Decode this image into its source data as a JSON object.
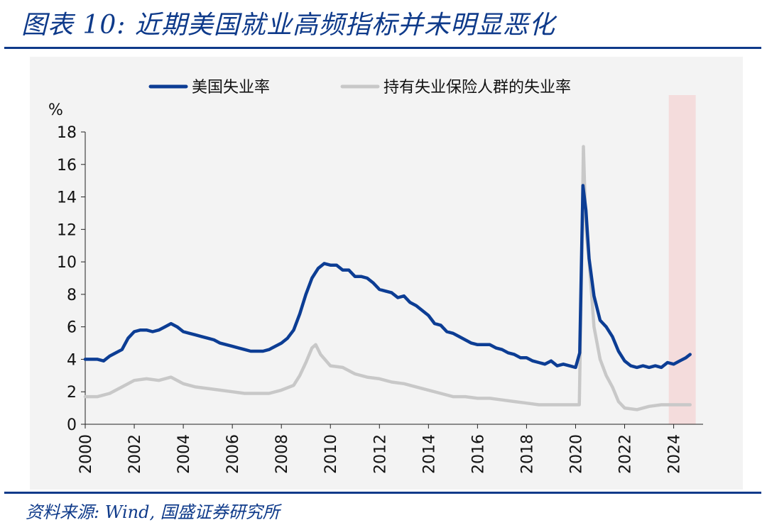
{
  "header": {
    "title": "图表 10:  近期美国就业高频指标并未明显恶化"
  },
  "footer": {
    "source": "资料来源: Wind, 国盛证券研究所"
  },
  "colors": {
    "brand": "#0e3a8a",
    "series_unemployment": "#0c3d94",
    "series_insured": "#c8c8c8",
    "highlight": "#f4dcdc",
    "panel": "#f3f3f3"
  },
  "chart_data": {
    "type": "line",
    "unit_label": "%",
    "xlim": [
      2000,
      2025.2
    ],
    "ylim": [
      0,
      18
    ],
    "yticks": [
      0,
      2,
      4,
      6,
      8,
      10,
      12,
      14,
      16,
      18
    ],
    "xticks": [
      "2000",
      "2002",
      "2004",
      "2006",
      "2008",
      "2010",
      "2012",
      "2014",
      "2016",
      "2018",
      "2020",
      "2022",
      "2024"
    ],
    "grid": false,
    "legend_position": "top",
    "highlight_range": [
      2023.8,
      2024.9
    ],
    "series": [
      {
        "name": "美国失业率",
        "color": "#0c3d94",
        "points": [
          [
            2000.0,
            4.0
          ],
          [
            2000.25,
            4.0
          ],
          [
            2000.5,
            4.0
          ],
          [
            2000.75,
            3.9
          ],
          [
            2001.0,
            4.2
          ],
          [
            2001.25,
            4.4
          ],
          [
            2001.5,
            4.6
          ],
          [
            2001.75,
            5.3
          ],
          [
            2002.0,
            5.7
          ],
          [
            2002.25,
            5.8
          ],
          [
            2002.5,
            5.8
          ],
          [
            2002.75,
            5.7
          ],
          [
            2003.0,
            5.8
          ],
          [
            2003.25,
            6.0
          ],
          [
            2003.5,
            6.2
          ],
          [
            2003.75,
            6.0
          ],
          [
            2004.0,
            5.7
          ],
          [
            2004.25,
            5.6
          ],
          [
            2004.5,
            5.5
          ],
          [
            2004.75,
            5.4
          ],
          [
            2005.0,
            5.3
          ],
          [
            2005.25,
            5.2
          ],
          [
            2005.5,
            5.0
          ],
          [
            2005.75,
            4.9
          ],
          [
            2006.0,
            4.8
          ],
          [
            2006.25,
            4.7
          ],
          [
            2006.5,
            4.6
          ],
          [
            2006.75,
            4.5
          ],
          [
            2007.0,
            4.5
          ],
          [
            2007.25,
            4.5
          ],
          [
            2007.5,
            4.6
          ],
          [
            2007.75,
            4.8
          ],
          [
            2008.0,
            5.0
          ],
          [
            2008.25,
            5.3
          ],
          [
            2008.5,
            5.8
          ],
          [
            2008.75,
            6.8
          ],
          [
            2009.0,
            8.0
          ],
          [
            2009.25,
            9.0
          ],
          [
            2009.5,
            9.6
          ],
          [
            2009.75,
            9.9
          ],
          [
            2010.0,
            9.8
          ],
          [
            2010.25,
            9.8
          ],
          [
            2010.5,
            9.5
          ],
          [
            2010.75,
            9.5
          ],
          [
            2011.0,
            9.1
          ],
          [
            2011.25,
            9.1
          ],
          [
            2011.5,
            9.0
          ],
          [
            2011.75,
            8.7
          ],
          [
            2012.0,
            8.3
          ],
          [
            2012.25,
            8.2
          ],
          [
            2012.5,
            8.1
          ],
          [
            2012.75,
            7.8
          ],
          [
            2013.0,
            7.9
          ],
          [
            2013.25,
            7.5
          ],
          [
            2013.5,
            7.3
          ],
          [
            2013.75,
            7.0
          ],
          [
            2014.0,
            6.7
          ],
          [
            2014.25,
            6.2
          ],
          [
            2014.5,
            6.1
          ],
          [
            2014.75,
            5.7
          ],
          [
            2015.0,
            5.6
          ],
          [
            2015.25,
            5.4
          ],
          [
            2015.5,
            5.2
          ],
          [
            2015.75,
            5.0
          ],
          [
            2016.0,
            4.9
          ],
          [
            2016.25,
            4.9
          ],
          [
            2016.5,
            4.9
          ],
          [
            2016.75,
            4.7
          ],
          [
            2017.0,
            4.6
          ],
          [
            2017.25,
            4.4
          ],
          [
            2017.5,
            4.3
          ],
          [
            2017.75,
            4.1
          ],
          [
            2018.0,
            4.1
          ],
          [
            2018.25,
            3.9
          ],
          [
            2018.5,
            3.8
          ],
          [
            2018.75,
            3.7
          ],
          [
            2019.0,
            3.9
          ],
          [
            2019.25,
            3.6
          ],
          [
            2019.5,
            3.7
          ],
          [
            2019.75,
            3.6
          ],
          [
            2020.0,
            3.5
          ],
          [
            2020.17,
            4.4
          ],
          [
            2020.3,
            14.7
          ],
          [
            2020.42,
            13.2
          ],
          [
            2020.55,
            10.2
          ],
          [
            2020.75,
            7.9
          ],
          [
            2021.0,
            6.4
          ],
          [
            2021.25,
            6.0
          ],
          [
            2021.5,
            5.4
          ],
          [
            2021.75,
            4.5
          ],
          [
            2022.0,
            3.9
          ],
          [
            2022.25,
            3.6
          ],
          [
            2022.5,
            3.5
          ],
          [
            2022.75,
            3.6
          ],
          [
            2023.0,
            3.5
          ],
          [
            2023.25,
            3.6
          ],
          [
            2023.5,
            3.5
          ],
          [
            2023.75,
            3.8
          ],
          [
            2024.0,
            3.7
          ],
          [
            2024.25,
            3.9
          ],
          [
            2024.5,
            4.1
          ],
          [
            2024.67,
            4.3
          ]
        ]
      },
      {
        "name": "持有失业保险人群的失业率",
        "color": "#c8c8c8",
        "points": [
          [
            2000.0,
            1.7
          ],
          [
            2000.5,
            1.7
          ],
          [
            2001.0,
            1.9
          ],
          [
            2001.5,
            2.3
          ],
          [
            2002.0,
            2.7
          ],
          [
            2002.5,
            2.8
          ],
          [
            2003.0,
            2.7
          ],
          [
            2003.5,
            2.9
          ],
          [
            2004.0,
            2.5
          ],
          [
            2004.5,
            2.3
          ],
          [
            2005.0,
            2.2
          ],
          [
            2005.5,
            2.1
          ],
          [
            2006.0,
            2.0
          ],
          [
            2006.5,
            1.9
          ],
          [
            2007.0,
            1.9
          ],
          [
            2007.5,
            1.9
          ],
          [
            2008.0,
            2.1
          ],
          [
            2008.5,
            2.4
          ],
          [
            2008.75,
            3.0
          ],
          [
            2009.0,
            3.8
          ],
          [
            2009.25,
            4.7
          ],
          [
            2009.4,
            4.9
          ],
          [
            2009.6,
            4.3
          ],
          [
            2010.0,
            3.6
          ],
          [
            2010.5,
            3.5
          ],
          [
            2011.0,
            3.1
          ],
          [
            2011.5,
            2.9
          ],
          [
            2012.0,
            2.8
          ],
          [
            2012.5,
            2.6
          ],
          [
            2013.0,
            2.5
          ],
          [
            2013.5,
            2.3
          ],
          [
            2014.0,
            2.1
          ],
          [
            2014.5,
            1.9
          ],
          [
            2015.0,
            1.7
          ],
          [
            2015.5,
            1.7
          ],
          [
            2016.0,
            1.6
          ],
          [
            2016.5,
            1.6
          ],
          [
            2017.0,
            1.5
          ],
          [
            2017.5,
            1.4
          ],
          [
            2018.0,
            1.3
          ],
          [
            2018.5,
            1.2
          ],
          [
            2019.0,
            1.2
          ],
          [
            2019.5,
            1.2
          ],
          [
            2020.0,
            1.2
          ],
          [
            2020.15,
            1.2
          ],
          [
            2020.25,
            10.0
          ],
          [
            2020.32,
            17.1
          ],
          [
            2020.42,
            12.0
          ],
          [
            2020.55,
            10.1
          ],
          [
            2020.75,
            6.0
          ],
          [
            2021.0,
            4.0
          ],
          [
            2021.25,
            3.0
          ],
          [
            2021.5,
            2.3
          ],
          [
            2021.75,
            1.4
          ],
          [
            2022.0,
            1.0
          ],
          [
            2022.5,
            0.9
          ],
          [
            2023.0,
            1.1
          ],
          [
            2023.5,
            1.2
          ],
          [
            2024.0,
            1.2
          ],
          [
            2024.5,
            1.2
          ],
          [
            2024.67,
            1.2
          ]
        ]
      }
    ]
  }
}
